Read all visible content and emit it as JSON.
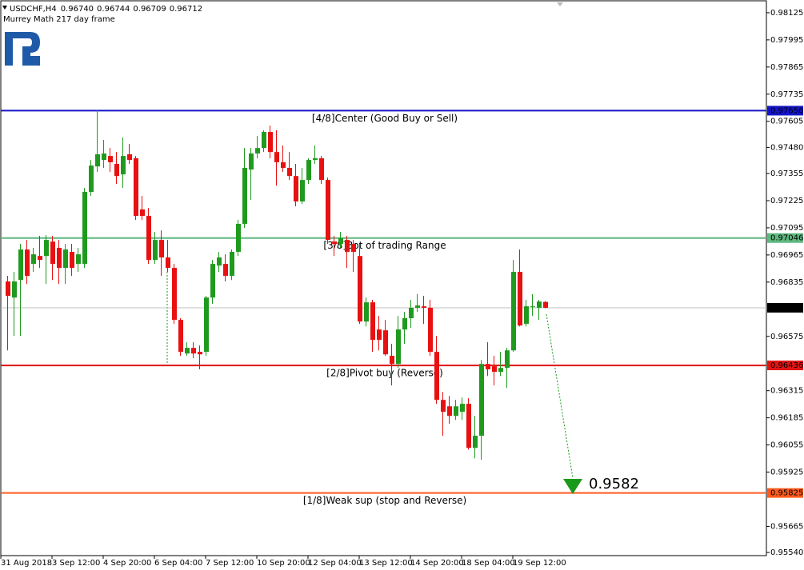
{
  "chart_data": {
    "type": "candlestick",
    "title": "USDCHF,H4",
    "quote": [
      {
        "value": 0.9674,
        "label": "0.96740"
      },
      0.96744,
      0.96709,
      0.96712
    ],
    "subtitle": "Murrey Math 217 day frame",
    "categories": [
      "31 Aug 2018",
      null,
      null,
      null,
      null,
      null,
      null,
      null,
      "3 Sep 12:00",
      null,
      null,
      null,
      null,
      null,
      null,
      null,
      "4 Sep 20:00",
      null,
      null,
      null,
      null,
      null,
      null,
      null,
      "6 Sep 04:00",
      null,
      null,
      null,
      null,
      null,
      null,
      null,
      "7 Sep 12:00",
      null,
      null,
      null,
      null,
      null,
      null,
      null,
      "10 Sep 20:00",
      null,
      null,
      null,
      null,
      null,
      null,
      null,
      "12 Sep 04:00",
      null,
      null,
      null,
      null,
      null,
      null,
      null,
      "13 Sep 12:00",
      null,
      null,
      null,
      null,
      null,
      null,
      null,
      "14 Sep 20:00",
      null,
      null,
      null,
      null,
      null,
      null,
      null,
      "18 Sep 04:00",
      null,
      null,
      null,
      null,
      null,
      null,
      null,
      "19 Sep 12:00",
      null,
      null,
      null,
      null
    ],
    "open": [
      0.96838,
      0.96761,
      0.96845,
      0.96991,
      0.96922,
      0.9696,
      0.9696,
      0.97029,
      0.96999,
      0.96903,
      0.9698,
      0.96922,
      0.96922,
      0.97267,
      0.97389,
      0.9742,
      0.97439,
      0.97401,
      0.97351,
      0.97447,
      0.97428,
      0.97183,
      0.97152,
      0.96941,
      0.97037,
      0.96953,
      0.96903,
      0.96654,
      0.96493,
      0.9652,
      0.96501,
      0.96501,
      0.96761,
      0.96914,
      0.96922,
      0.96865,
      0.9698,
      0.97114,
      0.97374,
      0.97451,
      0.97477,
      0.97554,
      0.97458,
      0.97409,
      0.97382,
      0.97343,
      0.97221,
      0.97324,
      0.9742,
      0.97428,
      0.97324,
      0.97029,
      0.97018,
      0.97037,
      0.97018,
      0.9696,
      0.96646,
      0.96738,
      0.96608,
      0.96604,
      0.96482,
      0.96443,
      0.96608,
      0.96662,
      0.96712,
      0.96719,
      0.96712,
      0.96501,
      0.96271,
      0.9624,
      0.96194,
      0.96214,
      0.96252,
      0.96041,
      0.96099,
      0.96443,
      0.96432,
      0.96405,
      0.96424,
      0.96508,
      0.96884,
      0.96635,
      0.96715,
      0.96712,
      0.9674
    ],
    "high": [
      0.96865,
      0.96884,
      0.97018,
      0.97037,
      0.96999,
      0.97056,
      0.9706,
      0.97056,
      0.97037,
      0.97018,
      0.97018,
      0.96999,
      0.97286,
      0.9742,
      0.97661,
      0.97516,
      0.97477,
      0.97458,
      0.97527,
      0.97497,
      0.97439,
      0.97248,
      0.9719,
      0.97075,
      0.97083,
      0.97037,
      0.96922,
      0.96662,
      0.96547,
      0.96547,
      0.96531,
      0.96769,
      0.96941,
      0.9698,
      0.96968,
      0.96991,
      0.97133,
      0.97477,
      0.97477,
      0.97535,
      0.97562,
      0.97585,
      0.97562,
      0.97489,
      0.97458,
      0.97401,
      0.97382,
      0.97428,
      0.97489,
      0.97439,
      0.97335,
      0.97056,
      0.97075,
      0.97056,
      0.97037,
      0.97018,
      0.96761,
      0.9675,
      0.96673,
      0.96654,
      0.96539,
      0.96673,
      0.96692,
      0.9675,
      0.96777,
      0.96769,
      0.9675,
      0.96577,
      0.96309,
      0.9629,
      0.96271,
      0.96282,
      0.96279,
      0.96194,
      0.96462,
      0.96547,
      0.96482,
      0.96501,
      0.9652,
      0.96941,
      0.96991,
      0.9675,
      0.96777,
      0.9675,
      0.96744
    ],
    "low": [
      0.96508,
      0.96577,
      0.96577,
      0.96826,
      0.96884,
      0.96903,
      0.96826,
      0.96845,
      0.96826,
      0.96826,
      0.96865,
      0.96884,
      0.96903,
      0.97248,
      0.97363,
      0.97382,
      0.97363,
      0.97305,
      0.97286,
      0.97401,
      0.97133,
      0.97133,
      0.96922,
      0.96922,
      0.96865,
      0.96884,
      0.96635,
      0.96482,
      0.96482,
      0.9647,
      0.96417,
      0.96482,
      0.96731,
      0.96884,
      0.96838,
      0.96845,
      0.9696,
      0.97095,
      0.97228,
      0.97428,
      0.97458,
      0.97428,
      0.97297,
      0.97363,
      0.97324,
      0.97198,
      0.97209,
      0.97305,
      0.97401,
      0.97305,
      0.97018,
      0.9696,
      0.96999,
      0.96903,
      0.96884,
      0.96635,
      0.96623,
      0.96501,
      0.96508,
      0.96482,
      0.9634,
      0.96424,
      0.96539,
      0.96616,
      0.96692,
      0.96635,
      0.96482,
      0.96252,
      0.96099,
      0.96156,
      0.96175,
      0.96175,
      0.96033,
      0.95991,
      0.95984,
      0.96385,
      0.9634,
      0.96385,
      0.96328,
      0.96501,
      0.96623,
      0.96623,
      0.96673,
      0.96654,
      0.96709
    ],
    "close": [
      0.96769,
      0.96838,
      0.96991,
      0.96865,
      0.96968,
      0.96941,
      0.97037,
      0.96922,
      0.96903,
      0.96991,
      0.96903,
      0.96968,
      0.97267,
      0.97393,
      0.97447,
      0.97451,
      0.97409,
      0.97343,
      0.97439,
      0.9742,
      0.97152,
      0.97152,
      0.96941,
      0.97037,
      0.96953,
      0.96903,
      0.96654,
      0.96501,
      0.9652,
      0.96493,
      0.96489,
      0.96761,
      0.96922,
      0.96953,
      0.96865,
      0.9698,
      0.97114,
      0.97382,
      0.97451,
      0.97477,
      0.97554,
      0.97458,
      0.97409,
      0.97382,
      0.97343,
      0.97221,
      0.97324,
      0.9742,
      0.97428,
      0.97324,
      0.97037,
      0.97018,
      0.97045,
      0.9698,
      0.9698,
      0.96646,
      0.96738,
      0.96558,
      0.96558,
      0.96489,
      0.96443,
      0.96608,
      0.96662,
      0.96712,
      0.96723,
      0.96712,
      0.96501,
      0.96271,
      0.96214,
      0.96194,
      0.9624,
      0.96252,
      0.96041,
      0.96099,
      0.96443,
      0.96417,
      0.96405,
      0.96424,
      0.96508,
      0.96884,
      0.96627,
      0.96719,
      0.96719,
      0.96742,
      0.96712
    ],
    "up_color": "#1f9a1f",
    "down_color": "#e81010",
    "ylim": [
      0.95525,
      0.98186
    ],
    "yticks": [
      0.98125,
      0.97995,
      0.97865,
      0.97735,
      0.97605,
      {
        "value": 0.9748,
        "label": "0.97480"
      },
      0.97355,
      0.97225,
      0.97095,
      0.96965,
      0.96835,
      0.96575,
      0.96315,
      0.96185,
      0.96055,
      0.95925,
      0.95665,
      {
        "value": 0.9554,
        "label": "0.95540"
      }
    ],
    "levels": [
      {
        "name": "[4/8]Center (Good Buy or Sell)",
        "value": 0.97656,
        "color": "#1414c8"
      },
      {
        "name": "[3/8]Bot of trading Range",
        "value": 0.97046,
        "color": "#5fb880"
      },
      {
        "name": "[2/8]Pivot buy (Reverse)",
        "value": 0.96436,
        "color": "#e01414"
      },
      {
        "name": "[1/8]Weak sup (stop and Reverse)",
        "value": 0.95825,
        "color": "#ff5a1e"
      }
    ],
    "current_price": 0.96712,
    "target": 0.9582,
    "target_color": "#1a9a1a"
  }
}
